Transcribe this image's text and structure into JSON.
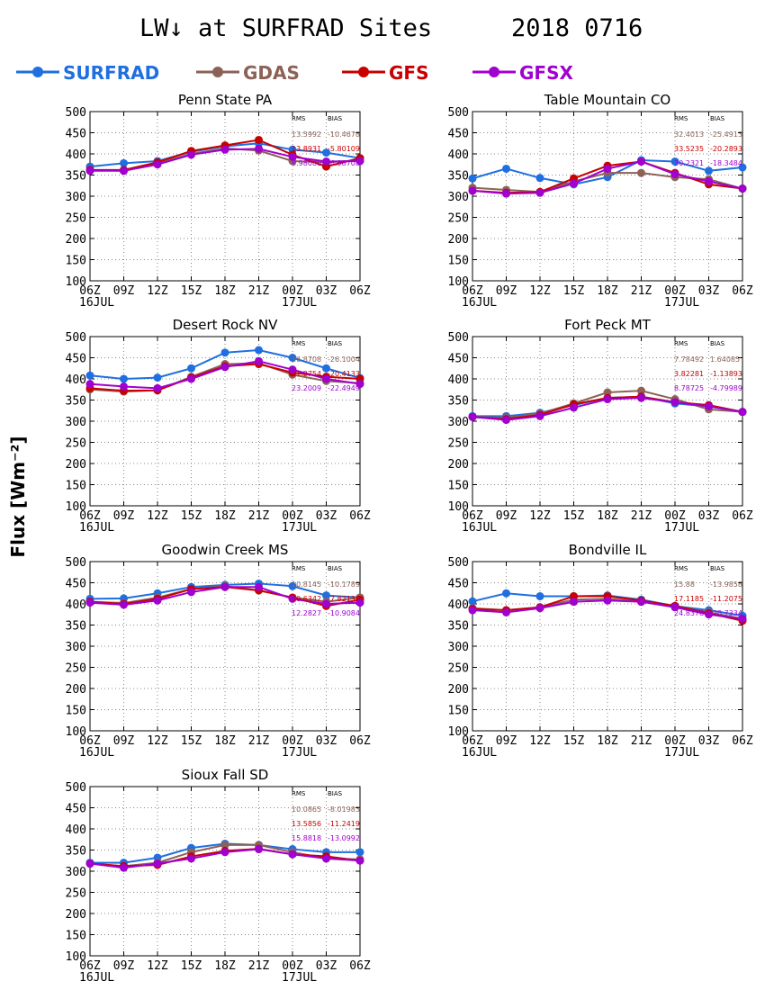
{
  "page": {
    "title": "LW↓ at SURFRAD Sites",
    "date": "2018 0716",
    "ylabel": "Flux [Wm⁻²]"
  },
  "legend": [
    {
      "label": "SURFRAD",
      "color": "#1f6fe0"
    },
    {
      "label": "GDAS",
      "color": "#8c6257"
    },
    {
      "label": "GFS",
      "color": "#c80000"
    },
    {
      "label": "GFSX",
      "color": "#a000d0"
    }
  ],
  "stats_headers": [
    "RMS",
    "BIAS"
  ],
  "chart_data": [
    {
      "type": "line",
      "title": "Penn State PA",
      "x": [
        "06Z",
        "09Z",
        "12Z",
        "15Z",
        "18Z",
        "21Z",
        "00Z",
        "03Z",
        "06Z"
      ],
      "date_labels": [
        "16JUL",
        "",
        "",
        "",
        "",
        "",
        "17JUL",
        "",
        ""
      ],
      "ylim": [
        100,
        500
      ],
      "yticks": [
        100,
        150,
        200,
        250,
        300,
        350,
        400,
        450,
        500
      ],
      "grid": true,
      "series": [
        {
          "name": "SURFRAD",
          "values": [
            370,
            378,
            383,
            405,
            418,
            425,
            410,
            403,
            390
          ]
        },
        {
          "name": "GDAS",
          "values": [
            362,
            360,
            378,
            400,
            413,
            408,
            383,
            380,
            385
          ]
        },
        {
          "name": "GFS",
          "values": [
            362,
            362,
            380,
            407,
            420,
            433,
            398,
            370,
            390
          ]
        },
        {
          "name": "GFSX",
          "values": [
            360,
            360,
            375,
            398,
            410,
            412,
            393,
            382,
            383
          ]
        }
      ],
      "stats": [
        {
          "rms": "13.5992",
          "bias": "-10.4678"
        },
        {
          "rms": "13.8931",
          "bias": "-5.80109"
        },
        {
          "rms": "8.98080",
          "bias": "-6.98708"
        }
      ]
    },
    {
      "type": "line",
      "title": "Table Mountain CO",
      "x": [
        "06Z",
        "09Z",
        "12Z",
        "15Z",
        "18Z",
        "21Z",
        "00Z",
        "03Z",
        "06Z"
      ],
      "date_labels": [
        "16JUL",
        "",
        "",
        "",
        "",
        "",
        "17JUL",
        "",
        ""
      ],
      "ylim": [
        100,
        500
      ],
      "yticks": [
        100,
        150,
        200,
        250,
        300,
        350,
        400,
        450,
        500
      ],
      "grid": true,
      "series": [
        {
          "name": "SURFRAD",
          "values": [
            342,
            365,
            343,
            328,
            345,
            385,
            382,
            360,
            368
          ]
        },
        {
          "name": "GDAS",
          "values": [
            320,
            315,
            310,
            335,
            355,
            355,
            345,
            340,
            318
          ]
        },
        {
          "name": "GFS",
          "values": [
            313,
            308,
            310,
            342,
            372,
            382,
            355,
            328,
            318
          ]
        },
        {
          "name": "GFSX",
          "values": [
            313,
            306,
            308,
            330,
            365,
            382,
            352,
            335,
            318
          ]
        }
      ],
      "stats": [
        {
          "rms": "32.4013",
          "bias": "-25.4913"
        },
        {
          "rms": "33.5235",
          "bias": "-20.2893"
        },
        {
          "rms": "30.2321",
          "bias": "-18.3484"
        }
      ]
    },
    {
      "type": "line",
      "title": "Desert Rock NV",
      "x": [
        "06Z",
        "09Z",
        "12Z",
        "15Z",
        "18Z",
        "21Z",
        "00Z",
        "03Z",
        "06Z"
      ],
      "date_labels": [
        "16JUL",
        "",
        "",
        "",
        "",
        "",
        "17JUL",
        "",
        ""
      ],
      "ylim": [
        100,
        500
      ],
      "yticks": [
        100,
        150,
        200,
        250,
        300,
        350,
        400,
        450,
        500
      ],
      "grid": true,
      "series": [
        {
          "name": "SURFRAD",
          "values": [
            408,
            400,
            403,
            425,
            462,
            468,
            450,
            425,
            402
          ]
        },
        {
          "name": "GDAS",
          "values": [
            375,
            370,
            373,
            405,
            435,
            437,
            410,
            395,
            390
          ]
        },
        {
          "name": "GFS",
          "values": [
            378,
            372,
            373,
            403,
            430,
            435,
            415,
            405,
            400
          ]
        },
        {
          "name": "GFSX",
          "values": [
            388,
            382,
            378,
            400,
            428,
            442,
            422,
            400,
            388
          ]
        }
      ],
      "stats": [
        {
          "rms": "26.8708",
          "bias": "-26.1004"
        },
        {
          "rms": "21.2754",
          "bias": "-20.4133"
        },
        {
          "rms": "23.2009",
          "bias": "-22.4949"
        }
      ]
    },
    {
      "type": "line",
      "title": "Fort Peck MT",
      "x": [
        "06Z",
        "09Z",
        "12Z",
        "15Z",
        "18Z",
        "21Z",
        "00Z",
        "03Z",
        "06Z"
      ],
      "date_labels": [
        "16JUL",
        "",
        "",
        "",
        "",
        "",
        "17JUL",
        "",
        ""
      ],
      "ylim": [
        100,
        500
      ],
      "yticks": [
        100,
        150,
        200,
        250,
        300,
        350,
        400,
        450,
        500
      ],
      "grid": true,
      "series": [
        {
          "name": "SURFRAD",
          "values": [
            312,
            312,
            320,
            338,
            355,
            358,
            342,
            335,
            322
          ]
        },
        {
          "name": "GDAS",
          "values": [
            310,
            308,
            318,
            342,
            368,
            372,
            352,
            328,
            322
          ]
        },
        {
          "name": "GFS",
          "values": [
            310,
            305,
            315,
            340,
            355,
            358,
            345,
            338,
            322
          ]
        },
        {
          "name": "GFSX",
          "values": [
            310,
            303,
            312,
            332,
            352,
            355,
            345,
            335,
            322
          ]
        }
      ],
      "stats": [
        {
          "rms": "7.78492",
          "bias": "1.64085"
        },
        {
          "rms": "3.82281",
          "bias": "-1.13893"
        },
        {
          "rms": "8.78725",
          "bias": "-4.79989"
        }
      ]
    },
    {
      "type": "line",
      "title": "Goodwin Creek MS",
      "x": [
        "06Z",
        "09Z",
        "12Z",
        "15Z",
        "18Z",
        "21Z",
        "00Z",
        "03Z",
        "06Z"
      ],
      "date_labels": [
        "16JUL",
        "",
        "",
        "",
        "",
        "",
        "17JUL",
        "",
        ""
      ],
      "ylim": [
        100,
        500
      ],
      "yticks": [
        100,
        150,
        200,
        250,
        300,
        350,
        400,
        450,
        500
      ],
      "grid": true,
      "series": [
        {
          "name": "SURFRAD",
          "values": [
            412,
            413,
            425,
            440,
            445,
            448,
            442,
            420,
            415
          ]
        },
        {
          "name": "GDAS",
          "values": [
            405,
            402,
            415,
            435,
            442,
            432,
            415,
            405,
            415
          ]
        },
        {
          "name": "GFS",
          "values": [
            405,
            400,
            412,
            435,
            440,
            432,
            415,
            395,
            410
          ]
        },
        {
          "name": "GFSX",
          "values": [
            403,
            398,
            408,
            428,
            440,
            440,
            412,
            400,
            403
          ]
        }
      ],
      "stats": [
        {
          "rms": "10.8145",
          "bias": "-10.1789"
        },
        {
          "rms": "10.6342",
          "bias": "-7.82137"
        },
        {
          "rms": "12.2827",
          "bias": "-10.9084"
        }
      ]
    },
    {
      "type": "line",
      "title": "Bondville IL",
      "x": [
        "06Z",
        "09Z",
        "12Z",
        "15Z",
        "18Z",
        "21Z",
        "00Z",
        "03Z",
        "06Z"
      ],
      "date_labels": [
        "16JUL",
        "",
        "",
        "",
        "",
        "",
        "17JUL",
        "",
        ""
      ],
      "ylim": [
        100,
        500
      ],
      "yticks": [
        100,
        150,
        200,
        250,
        300,
        350,
        400,
        450,
        500
      ],
      "grid": true,
      "series": [
        {
          "name": "SURFRAD",
          "values": [
            406,
            425,
            418,
            418,
            420,
            410,
            395,
            385,
            372
          ]
        },
        {
          "name": "GDAS",
          "values": [
            390,
            385,
            392,
            410,
            412,
            405,
            395,
            380,
            365
          ]
        },
        {
          "name": "GFS",
          "values": [
            388,
            385,
            392,
            418,
            418,
            408,
            395,
            378,
            360
          ]
        },
        {
          "name": "GFSX",
          "values": [
            385,
            380,
            390,
            405,
            408,
            405,
            392,
            375,
            365
          ]
        }
      ],
      "stats": [
        {
          "rms": "15.88",
          "bias": "-13.9858"
        },
        {
          "rms": "17.1185",
          "bias": "-11.2075"
        },
        {
          "rms": "24.8376",
          "bias": "-20.7334"
        }
      ]
    },
    {
      "type": "line",
      "title": "Sioux Fall SD",
      "x": [
        "06Z",
        "09Z",
        "12Z",
        "15Z",
        "18Z",
        "21Z",
        "00Z",
        "03Z",
        "06Z"
      ],
      "date_labels": [
        "16JUL",
        "",
        "",
        "",
        "",
        "",
        "17JUL",
        "",
        ""
      ],
      "ylim": [
        100,
        500
      ],
      "yticks": [
        100,
        150,
        200,
        250,
        300,
        350,
        400,
        450,
        500
      ],
      "grid": true,
      "series": [
        {
          "name": "SURFRAD",
          "values": [
            320,
            320,
            332,
            355,
            365,
            362,
            352,
            345,
            345
          ]
        },
        {
          "name": "GDAS",
          "values": [
            318,
            312,
            320,
            345,
            362,
            362,
            345,
            330,
            328
          ]
        },
        {
          "name": "GFS",
          "values": [
            318,
            312,
            315,
            335,
            348,
            353,
            340,
            335,
            325
          ]
        },
        {
          "name": "GFSX",
          "values": [
            318,
            308,
            318,
            330,
            345,
            352,
            340,
            330,
            325
          ]
        }
      ],
      "stats": [
        {
          "rms": "10.0865",
          "bias": "-8.01983"
        },
        {
          "rms": "13.5856",
          "bias": "-11.2419"
        },
        {
          "rms": "15.8818",
          "bias": "-13.0992"
        }
      ]
    }
  ]
}
